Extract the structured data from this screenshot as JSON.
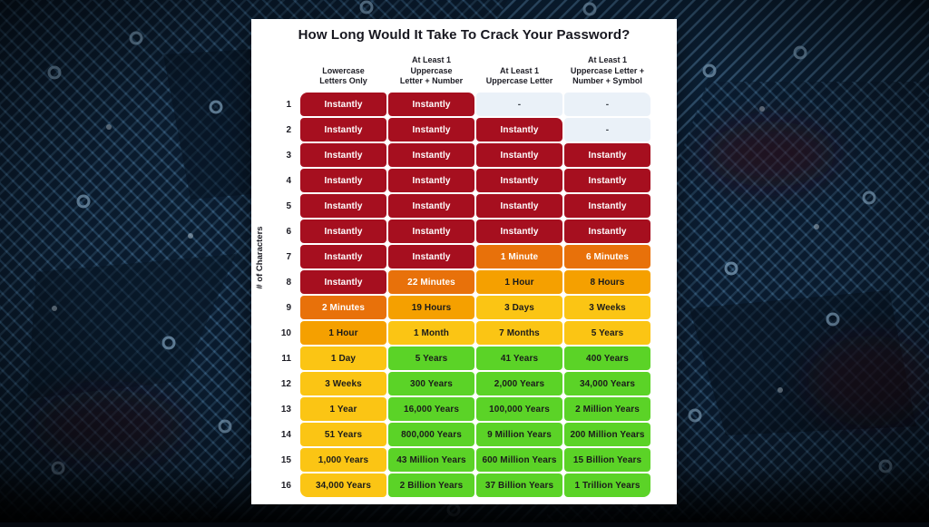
{
  "page": {
    "background_style": "dark blue printed circuit board photograph with light traces and pads, vignetted edges"
  },
  "colors": {
    "card_bg": "#FFFFFF",
    "title_text": "#17171F",
    "bg_base": "#0C2138",
    "bg_trace": "#6D9CC4"
  },
  "chart_data": {
    "type": "table",
    "title": "How Long Would It Take To Crack Your Password?",
    "y_axis_label": "# of Characters",
    "columns": [
      "Lowercase\nLetters Only",
      "At Least 1\nUppercase\nLetter + Number",
      "At Least 1\nUppercase Letter",
      "At Least 1\nUppercase Letter +\nNumber + Symbol"
    ],
    "palette": {
      "red": "#A60F1F",
      "orange": "#E8710A",
      "amber": "#F5A000",
      "yellow": "#FBC514",
      "green": "#5BD327",
      "blank": "#EAF1F8"
    },
    "text_colors": {
      "red": "#FFFFFF",
      "orange": "#FFFFFF",
      "amber": "#1B1B1B",
      "yellow": "#1B1B1B",
      "green": "#1B1B1B",
      "blank": "#3A3F47"
    },
    "rows": [
      {
        "n": 1,
        "cells": [
          {
            "t": "Instantly",
            "c": "red"
          },
          {
            "t": "Instantly",
            "c": "red"
          },
          {
            "t": "-",
            "c": "blank"
          },
          {
            "t": "-",
            "c": "blank"
          }
        ]
      },
      {
        "n": 2,
        "cells": [
          {
            "t": "Instantly",
            "c": "red"
          },
          {
            "t": "Instantly",
            "c": "red"
          },
          {
            "t": "Instantly",
            "c": "red"
          },
          {
            "t": "-",
            "c": "blank"
          }
        ]
      },
      {
        "n": 3,
        "cells": [
          {
            "t": "Instantly",
            "c": "red"
          },
          {
            "t": "Instantly",
            "c": "red"
          },
          {
            "t": "Instantly",
            "c": "red"
          },
          {
            "t": "Instantly",
            "c": "red"
          }
        ]
      },
      {
        "n": 4,
        "cells": [
          {
            "t": "Instantly",
            "c": "red"
          },
          {
            "t": "Instantly",
            "c": "red"
          },
          {
            "t": "Instantly",
            "c": "red"
          },
          {
            "t": "Instantly",
            "c": "red"
          }
        ]
      },
      {
        "n": 5,
        "cells": [
          {
            "t": "Instantly",
            "c": "red"
          },
          {
            "t": "Instantly",
            "c": "red"
          },
          {
            "t": "Instantly",
            "c": "red"
          },
          {
            "t": "Instantly",
            "c": "red"
          }
        ]
      },
      {
        "n": 6,
        "cells": [
          {
            "t": "Instantly",
            "c": "red"
          },
          {
            "t": "Instantly",
            "c": "red"
          },
          {
            "t": "Instantly",
            "c": "red"
          },
          {
            "t": "Instantly",
            "c": "red"
          }
        ]
      },
      {
        "n": 7,
        "cells": [
          {
            "t": "Instantly",
            "c": "red"
          },
          {
            "t": "Instantly",
            "c": "red"
          },
          {
            "t": "1 Minute",
            "c": "orange"
          },
          {
            "t": "6 Minutes",
            "c": "orange"
          }
        ]
      },
      {
        "n": 8,
        "cells": [
          {
            "t": "Instantly",
            "c": "red"
          },
          {
            "t": "22 Minutes",
            "c": "orange"
          },
          {
            "t": "1 Hour",
            "c": "amber"
          },
          {
            "t": "8 Hours",
            "c": "amber"
          }
        ]
      },
      {
        "n": 9,
        "cells": [
          {
            "t": "2 Minutes",
            "c": "orange"
          },
          {
            "t": "19 Hours",
            "c": "amber"
          },
          {
            "t": "3 Days",
            "c": "yellow"
          },
          {
            "t": "3 Weeks",
            "c": "yellow"
          }
        ]
      },
      {
        "n": 10,
        "cells": [
          {
            "t": "1 Hour",
            "c": "amber"
          },
          {
            "t": "1 Month",
            "c": "yellow"
          },
          {
            "t": "7 Months",
            "c": "yellow"
          },
          {
            "t": "5 Years",
            "c": "yellow"
          }
        ]
      },
      {
        "n": 11,
        "cells": [
          {
            "t": "1 Day",
            "c": "yellow"
          },
          {
            "t": "5 Years",
            "c": "green"
          },
          {
            "t": "41 Years",
            "c": "green"
          },
          {
            "t": "400 Years",
            "c": "green"
          }
        ]
      },
      {
        "n": 12,
        "cells": [
          {
            "t": "3 Weeks",
            "c": "yellow"
          },
          {
            "t": "300 Years",
            "c": "green"
          },
          {
            "t": "2,000 Years",
            "c": "green"
          },
          {
            "t": "34,000 Years",
            "c": "green"
          }
        ]
      },
      {
        "n": 13,
        "cells": [
          {
            "t": "1 Year",
            "c": "yellow"
          },
          {
            "t": "16,000 Years",
            "c": "green"
          },
          {
            "t": "100,000 Years",
            "c": "green"
          },
          {
            "t": "2 Million Years",
            "c": "green"
          }
        ]
      },
      {
        "n": 14,
        "cells": [
          {
            "t": "51 Years",
            "c": "yellow"
          },
          {
            "t": "800,000 Years",
            "c": "green"
          },
          {
            "t": "9 Million Years",
            "c": "green"
          },
          {
            "t": "200 Million Years",
            "c": "green"
          }
        ]
      },
      {
        "n": 15,
        "cells": [
          {
            "t": "1,000 Years",
            "c": "yellow"
          },
          {
            "t": "43 Million Years",
            "c": "green"
          },
          {
            "t": "600 Million Years",
            "c": "green"
          },
          {
            "t": "15 Billion Years",
            "c": "green"
          }
        ]
      },
      {
        "n": 16,
        "cells": [
          {
            "t": "34,000 Years",
            "c": "yellow"
          },
          {
            "t": "2 Billion Years",
            "c": "green"
          },
          {
            "t": "37 Billion Years",
            "c": "green"
          },
          {
            "t": "1 Trillion Years",
            "c": "green"
          }
        ]
      }
    ]
  }
}
